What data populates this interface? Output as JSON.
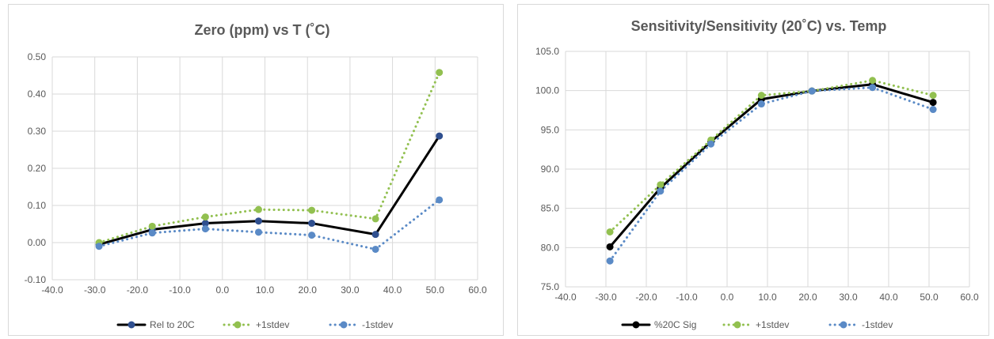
{
  "chart_data": [
    {
      "type": "line",
      "title": "Zero (ppm) vs T (˚C)",
      "xlabel": "",
      "ylabel": "",
      "xlim": [
        -40,
        60
      ],
      "ylim": [
        -0.1,
        0.5
      ],
      "x_ticks": [
        "-40.0",
        "-30.0",
        "-20.0",
        "-10.0",
        "0.0",
        "10.0",
        "20.0",
        "30.0",
        "40.0",
        "50.0",
        "60.0"
      ],
      "y_ticks": [
        "-0.10",
        "0.00",
        "0.10",
        "0.20",
        "0.30",
        "0.40",
        "0.50"
      ],
      "grid": true,
      "legend_position": "bottom",
      "series": [
        {
          "name": "Rel to 20C",
          "color": "#000000",
          "marker_color": "#2f4f8f",
          "dash": "solid",
          "x": [
            -29,
            -16.5,
            -4,
            8.5,
            21,
            36,
            51
          ],
          "y": [
            -0.005,
            0.035,
            0.052,
            0.058,
            0.052,
            0.022,
            0.287
          ]
        },
        {
          "name": "+1stdev",
          "color": "#92c050",
          "marker_color": "#92c050",
          "dash": "dot",
          "x": [
            -29,
            -16.5,
            -4,
            8.5,
            21,
            36,
            51
          ],
          "y": [
            0.0,
            0.044,
            0.069,
            0.089,
            0.087,
            0.064,
            0.458
          ]
        },
        {
          "name": "-1stdev",
          "color": "#5a8ac6",
          "marker_color": "#5a8ac6",
          "dash": "dot",
          "x": [
            -29,
            -16.5,
            -4,
            8.5,
            21,
            36,
            51
          ],
          "y": [
            -0.01,
            0.026,
            0.037,
            0.028,
            0.02,
            -0.018,
            0.115
          ]
        }
      ]
    },
    {
      "type": "line",
      "title": "Sensitivity/Sensitivity (20˚C) vs. Temp",
      "xlabel": "",
      "ylabel": "",
      "xlim": [
        -40,
        60
      ],
      "ylim": [
        75,
        105
      ],
      "x_ticks": [
        "-40.0",
        "-30.0",
        "-20.0",
        "-10.0",
        "0.0",
        "10.0",
        "20.0",
        "30.0",
        "40.0",
        "50.0",
        "60.0"
      ],
      "y_ticks": [
        "75.0",
        "80.0",
        "85.0",
        "90.0",
        "95.0",
        "100.0",
        "105.0"
      ],
      "grid": true,
      "legend_position": "bottom",
      "series": [
        {
          "name": "%20C Sig",
          "color": "#000000",
          "marker_color": "#000000",
          "dash": "solid",
          "x": [
            -29,
            -16.5,
            -4,
            8.5,
            21,
            36,
            51
          ],
          "y": [
            80.1,
            87.6,
            93.5,
            98.9,
            99.95,
            100.8,
            98.5
          ]
        },
        {
          "name": "+1stdev",
          "color": "#92c050",
          "marker_color": "#92c050",
          "dash": "dot",
          "x": [
            -29,
            -16.5,
            -4,
            8.5,
            21,
            36,
            51
          ],
          "y": [
            82.0,
            88.0,
            93.7,
            99.4,
            99.95,
            101.3,
            99.4
          ]
        },
        {
          "name": "-1stdev",
          "color": "#5a8ac6",
          "marker_color": "#5a8ac6",
          "dash": "dot",
          "x": [
            -29,
            -16.5,
            -4,
            8.5,
            21,
            36,
            51
          ],
          "y": [
            78.3,
            87.2,
            93.2,
            98.3,
            99.95,
            100.4,
            97.6
          ]
        }
      ]
    }
  ]
}
